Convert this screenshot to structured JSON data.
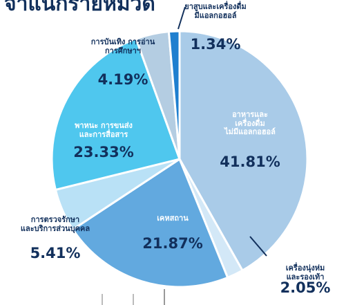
{
  "chart_data": {
    "type": "pie",
    "title": "จำแนกรายหมวด",
    "categories": [
      "อาหารและ\nเครื่องดื่ม\nไม่มีแอลกอฮอล์",
      "เครื่องนุ่งห่มและรองเท้า",
      "เคหสถาน",
      "การตรวจรักษา\nและบริการส่วนบุคคล",
      "พาหนะ การขนส่ง\nและการสื่อสาร",
      "การบันเทิง การอ่าน\nการศึกษาฯ",
      "ยาสูบและเครื่องดื่ม\nมีแอลกอฮอล์"
    ],
    "values": [
      41.81,
      2.05,
      21.87,
      5.41,
      23.33,
      4.19,
      1.34
    ],
    "value_labels": [
      "41.81%",
      "2.05%",
      "21.87%",
      "5.41%",
      "23.33%",
      "4.19%",
      "1.34%"
    ],
    "colors": [
      "#a9cbe8",
      "#d3e8f7",
      "#62a9df",
      "#b9e1f6",
      "#4fc7ee",
      "#b4cde2",
      "#1f7fcf"
    ]
  }
}
